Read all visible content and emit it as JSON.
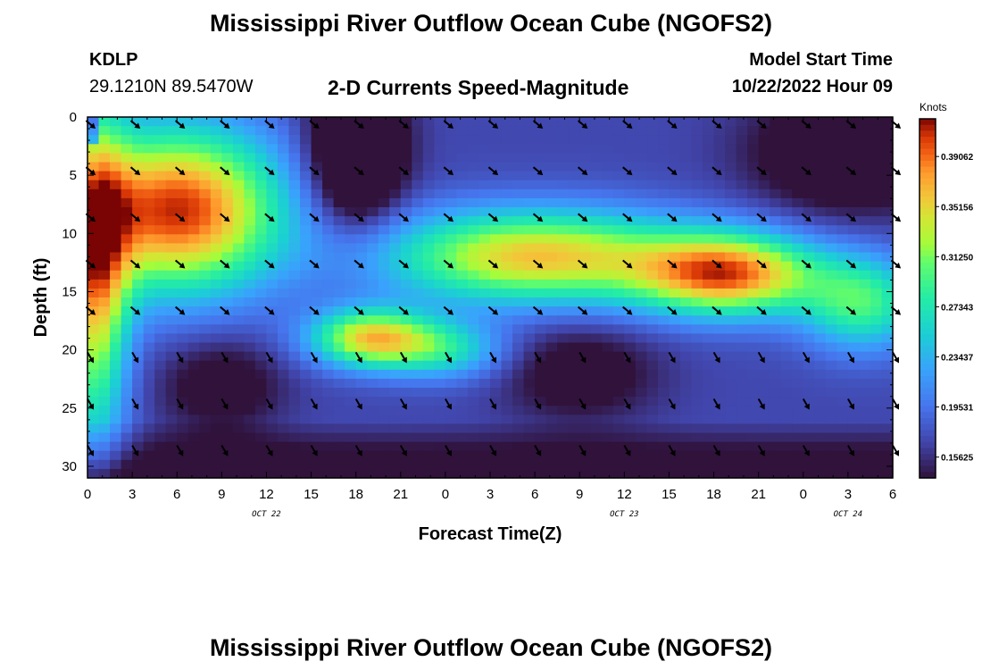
{
  "header": {
    "title": "Mississippi River Outflow Ocean Cube (NGOFS2)",
    "station_id": "KDLP",
    "coords": "29.1210N  89.5470W",
    "plot_title": "2-D Currents Speed-Magnitude",
    "model_start_label": "Model Start Time",
    "model_start_value": "10/22/2022 Hour 09"
  },
  "footer": {
    "title_repeat": "Mississippi River Outflow Ocean Cube (NGOFS2)"
  },
  "chart_data": {
    "type": "heatmap",
    "title": "2-D Currents Speed-Magnitude",
    "xlabel": "Forecast Time(Z)",
    "ylabel": "Depth (ft)",
    "x_ticks": [
      "0",
      "3",
      "6",
      "9",
      "12",
      "15",
      "18",
      "21",
      "0",
      "3",
      "6",
      "9",
      "12",
      "15",
      "18",
      "21",
      "0",
      "3",
      "6"
    ],
    "date_labels": [
      {
        "text": "OCT 22",
        "at_tick": 4
      },
      {
        "text": "OCT 23",
        "at_tick": 12
      },
      {
        "text": "OCT 24",
        "at_tick": 17
      }
    ],
    "y_ticks": [
      "0",
      "5",
      "10",
      "15",
      "20",
      "25",
      "30"
    ],
    "x_range_hours": [
      0,
      54
    ],
    "y_range_ft": [
      0,
      31
    ],
    "colorbar": {
      "unit": "Knots",
      "labels": [
        "0.39062",
        "0.35156",
        "0.31250",
        "0.27343",
        "0.23437",
        "0.19531",
        "0.15625"
      ],
      "range": [
        0.14,
        0.42
      ]
    },
    "value_field_hint": "high speed (~0.40 kn) upper-left core 0-12h at 0-16ft, secondary core 15-21h at 17-21ft, band 21h-54h at 7-17ft; low speed (~0.16-0.20 kn) below 22ft and in upper layer 15-21h and after 36h",
    "arrow_direction": "southeast"
  }
}
